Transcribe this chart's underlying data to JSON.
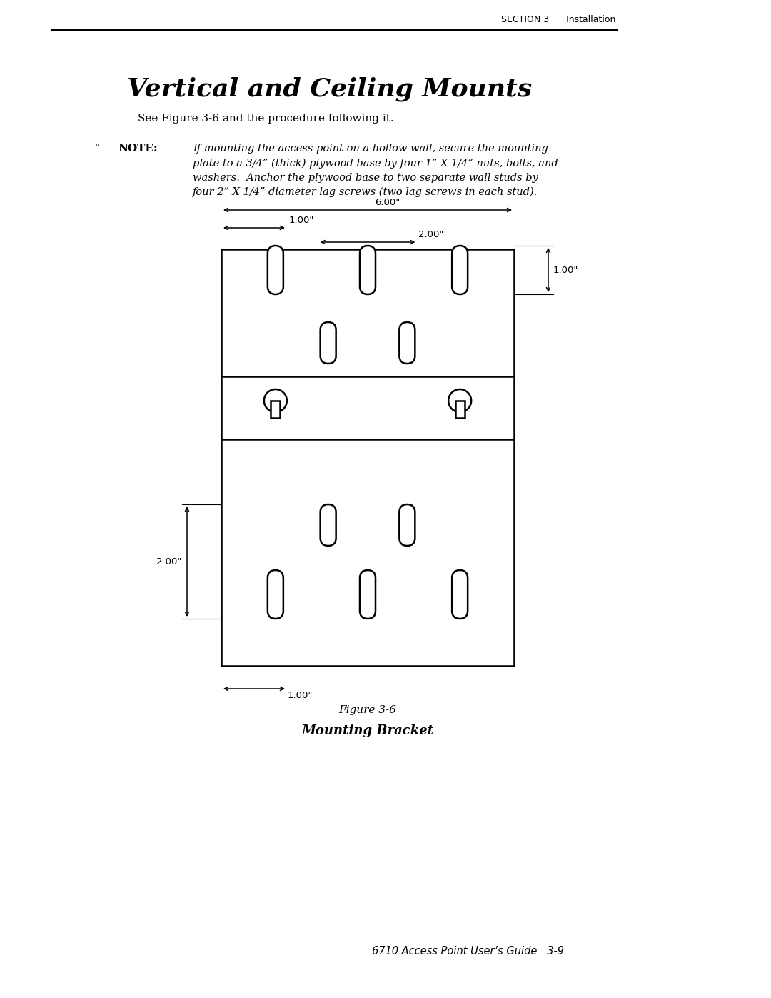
{
  "page_title": "SECTION 3  ·   Installation",
  "section_title": "Vertical and Ceiling Mounts",
  "see_text": "See Figure 3-6 and the procedure following it.",
  "note_marker": "\"",
  "note_label": "NOTE:",
  "note_text": "If mounting the access point on a hollow wall, secure the mounting\nplate to a 3/4” (thick) plywood base by four 1” X 1/4” nuts, bolts, and\nwashers.  Anchor the plywood base to two separate wall studs by\nfour 2” X 1/4” diameter lag screws (two lag screws in each stud).",
  "figure_label": "Figure 3-6",
  "figure_caption": "Mounting Bracket",
  "footer": "6710 Access Point User’s Guide   3-9",
  "bg_color": "#ffffff",
  "line_color": "#000000"
}
